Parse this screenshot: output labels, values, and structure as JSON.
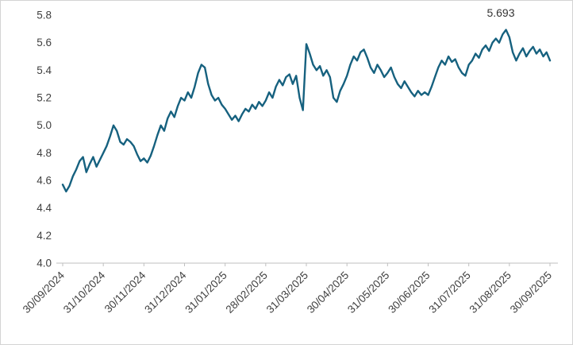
{
  "chart_data": {
    "type": "line",
    "series_name": "price-series",
    "series_color": "#16617F",
    "axis_color": "#bfbfbf",
    "label_color": "#404040",
    "annotation": "5.693",
    "ylim": [
      4.0,
      5.8
    ],
    "yticks": [
      "5.8",
      "5.6",
      "5.4",
      "5.2",
      "5.0",
      "4.8",
      "4.6",
      "4.4",
      "4.2",
      "4.0"
    ],
    "x_tick_labels": [
      "30/09/2024",
      "31/10/2024",
      "30/11/2024",
      "31/12/2024",
      "31/01/2025",
      "28/02/2025",
      "31/03/2025",
      "30/04/2025",
      "31/05/2025",
      "30/06/2025",
      "31/07/2025",
      "31/08/2025",
      "30/09/2025"
    ],
    "legend": "off",
    "grid": "off",
    "values": [
      4.57,
      4.52,
      4.56,
      4.63,
      4.68,
      4.74,
      4.77,
      4.66,
      4.72,
      4.77,
      4.7,
      4.75,
      4.8,
      4.85,
      4.92,
      5.0,
      4.96,
      4.88,
      4.86,
      4.9,
      4.88,
      4.85,
      4.79,
      4.74,
      4.76,
      4.73,
      4.78,
      4.85,
      4.93,
      5.0,
      4.96,
      5.05,
      5.1,
      5.06,
      5.14,
      5.2,
      5.18,
      5.24,
      5.2,
      5.28,
      5.38,
      5.44,
      5.42,
      5.3,
      5.22,
      5.18,
      5.2,
      5.15,
      5.12,
      5.08,
      5.04,
      5.07,
      5.03,
      5.08,
      5.12,
      5.1,
      5.15,
      5.12,
      5.17,
      5.14,
      5.18,
      5.24,
      5.2,
      5.28,
      5.33,
      5.29,
      5.35,
      5.37,
      5.3,
      5.36,
      5.2,
      5.11,
      5.59,
      5.52,
      5.44,
      5.4,
      5.43,
      5.36,
      5.4,
      5.35,
      5.2,
      5.17,
      5.25,
      5.3,
      5.36,
      5.44,
      5.5,
      5.47,
      5.53,
      5.55,
      5.49,
      5.42,
      5.38,
      5.44,
      5.4,
      5.35,
      5.38,
      5.42,
      5.35,
      5.3,
      5.27,
      5.32,
      5.28,
      5.24,
      5.21,
      5.25,
      5.22,
      5.24,
      5.22,
      5.28,
      5.35,
      5.42,
      5.47,
      5.44,
      5.5,
      5.46,
      5.48,
      5.42,
      5.38,
      5.36,
      5.44,
      5.47,
      5.52,
      5.49,
      5.55,
      5.58,
      5.54,
      5.6,
      5.63,
      5.6,
      5.66,
      5.693,
      5.64,
      5.53,
      5.47,
      5.52,
      5.56,
      5.5,
      5.54,
      5.57,
      5.52,
      5.55,
      5.5,
      5.53,
      5.47
    ]
  }
}
